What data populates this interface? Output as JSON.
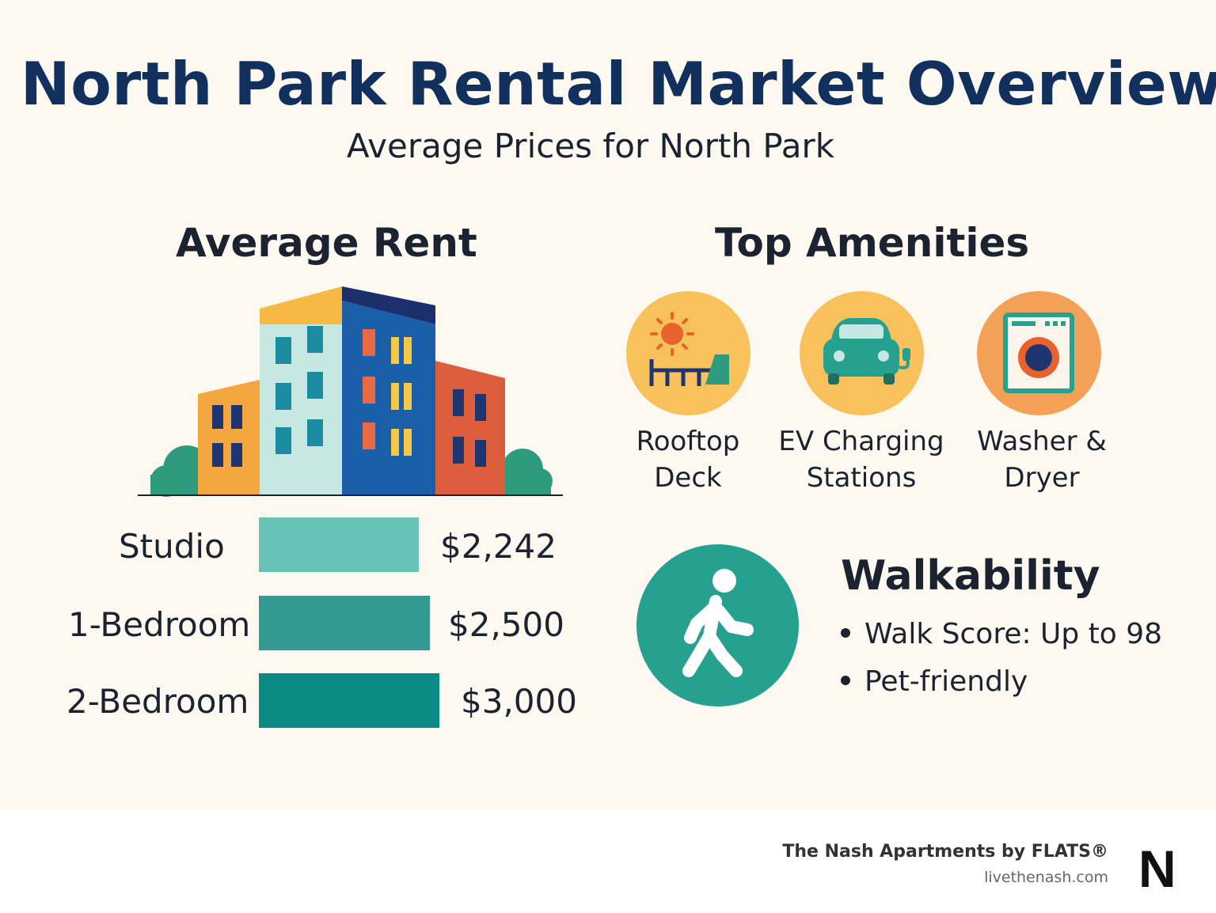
{
  "header": {
    "title": "North Park Rental Market Overview",
    "subtitle": "Average Prices for North Park"
  },
  "rent": {
    "heading": "Average Rent",
    "rows": [
      {
        "label": "Studio",
        "value": "$2,242",
        "amount": 2242,
        "color": "#68c3b6"
      },
      {
        "label": "1-Bedroom",
        "value": "$2,500",
        "amount": 2500,
        "color": "#339a92"
      },
      {
        "label": "2-Bedroom",
        "value": "$3,000",
        "amount": 3000,
        "color": "#0b8a84"
      }
    ]
  },
  "amenities": {
    "heading": "Top Amenities",
    "items": [
      {
        "label_line1": "Rooftop",
        "label_line2": "Deck",
        "icon": "rooftop-deck-icon",
        "color": "#f8c15b"
      },
      {
        "label_line1": "EV Charging",
        "label_line2": "Stations",
        "icon": "ev-charging-car-icon",
        "color": "#f8c15b"
      },
      {
        "label_line1": "Washer &",
        "label_line2": "Dryer",
        "icon": "washer-dryer-icon",
        "color": "#f3a156"
      }
    ]
  },
  "walkability": {
    "heading": "Walkability",
    "items": [
      "Walk Score: Up to 98",
      "Pet-friendly"
    ],
    "icon": "pedestrian-icon",
    "color": "#26a08f"
  },
  "footer": {
    "brand": "The Nash Apartments by FLATS®",
    "url": "livethenash.com",
    "logo": "N"
  },
  "colors": {
    "background": "#fdf9f0",
    "title": "#12305e",
    "text": "#1c2330"
  }
}
